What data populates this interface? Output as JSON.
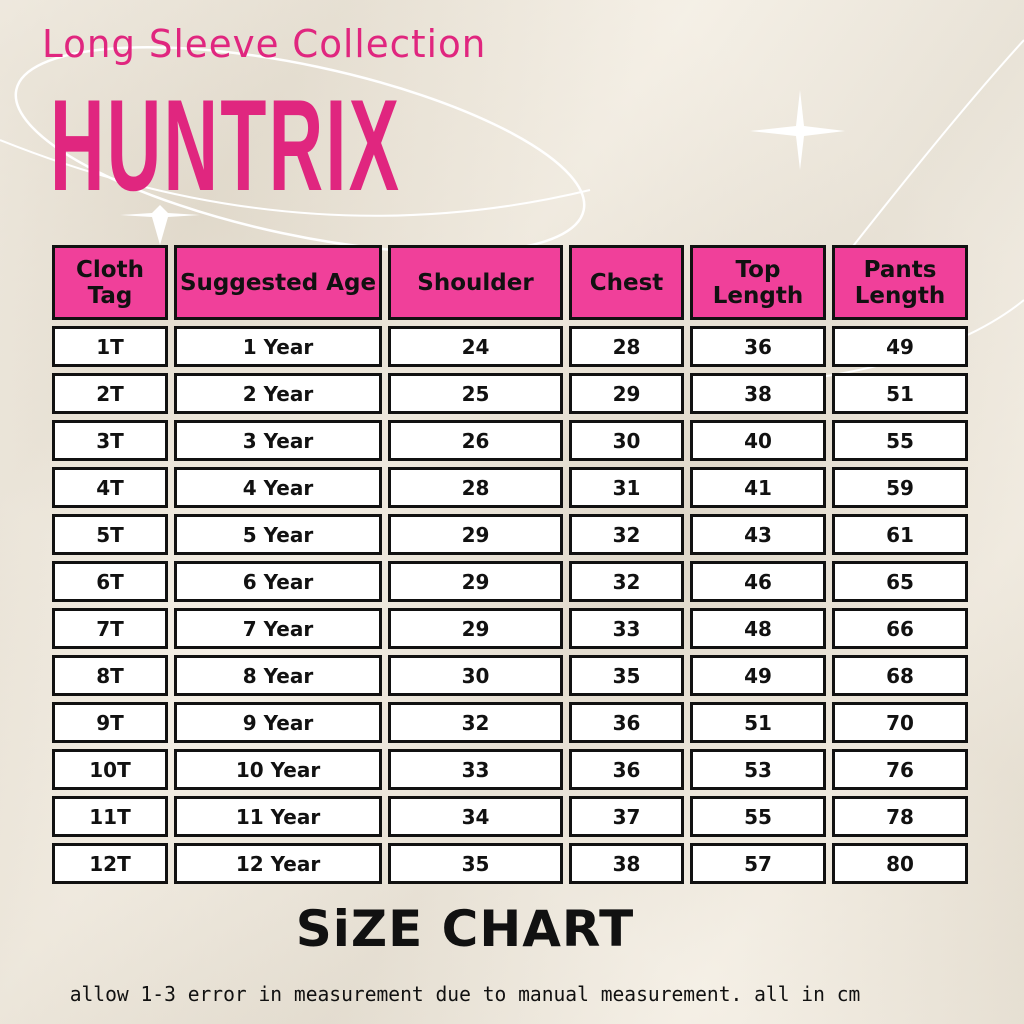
{
  "header": {
    "subtitle": "Long Sleeve Collection",
    "brand": "HUNTRIX"
  },
  "colors": {
    "accent": "#e0267f",
    "header_fill": "#f0409a",
    "background": "#efe7d8"
  },
  "table": {
    "columns": [
      "Cloth Tag",
      "Suggested Age",
      "Shoulder",
      "Chest",
      "Top Length",
      "Pants Length"
    ],
    "rows": [
      [
        "1T",
        "1 Year",
        "24",
        "28",
        "36",
        "49"
      ],
      [
        "2T",
        "2 Year",
        "25",
        "29",
        "38",
        "51"
      ],
      [
        "3T",
        "3 Year",
        "26",
        "30",
        "40",
        "55"
      ],
      [
        "4T",
        "4 Year",
        "28",
        "31",
        "41",
        "59"
      ],
      [
        "5T",
        "5 Year",
        "29",
        "32",
        "43",
        "61"
      ],
      [
        "6T",
        "6 Year",
        "29",
        "32",
        "46",
        "65"
      ],
      [
        "7T",
        "7 Year",
        "29",
        "33",
        "48",
        "66"
      ],
      [
        "8T",
        "8 Year",
        "30",
        "35",
        "49",
        "68"
      ],
      [
        "9T",
        "9 Year",
        "32",
        "36",
        "51",
        "70"
      ],
      [
        "10T",
        "10 Year",
        "33",
        "36",
        "53",
        "76"
      ],
      [
        "11T",
        "11 Year",
        "34",
        "37",
        "55",
        "78"
      ],
      [
        "12T",
        "12 Year",
        "35",
        "38",
        "57",
        "80"
      ]
    ]
  },
  "footer": {
    "title": "SiZE CHART",
    "note": "allow 1-3 error in measurement due to manual measurement. all in cm"
  }
}
